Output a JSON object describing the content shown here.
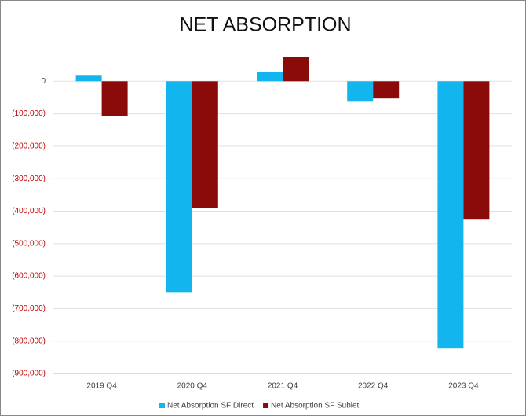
{
  "chart_data": {
    "type": "bar",
    "title": "NET ABSORPTION",
    "categories": [
      "2019 Q4",
      "2020 Q4",
      "2021 Q4",
      "2022 Q4",
      "2023 Q4"
    ],
    "series": [
      {
        "name": "Net Absorption SF Direct",
        "color": "#12b5ee",
        "values": [
          17000,
          -649000,
          29000,
          -63000,
          -823000
        ]
      },
      {
        "name": "Net Absorption SF Sublet",
        "color": "#8b0a0a",
        "values": [
          -106000,
          -390000,
          75000,
          -53000,
          -426000
        ]
      }
    ],
    "ylim": [
      -900000,
      100000
    ],
    "yticks": [
      0,
      {
        "value": -100000,
        "label": "(100,000)"
      },
      {
        "value": -200000,
        "label": "(200,000)"
      },
      {
        "value": -300000,
        "label": "(300,000)"
      },
      {
        "value": -400000,
        "label": "(400,000)"
      },
      {
        "value": -500000,
        "label": "(500,000)"
      },
      {
        "value": -600000,
        "label": "(600,000)"
      },
      {
        "value": -700000,
        "label": "(700,000)"
      },
      {
        "value": -800000,
        "label": "(800,000)"
      },
      {
        "value": -900000,
        "label": "(900,000)"
      }
    ],
    "negative_tick_color": "#c00000",
    "grid": true,
    "legend": "bottom"
  }
}
